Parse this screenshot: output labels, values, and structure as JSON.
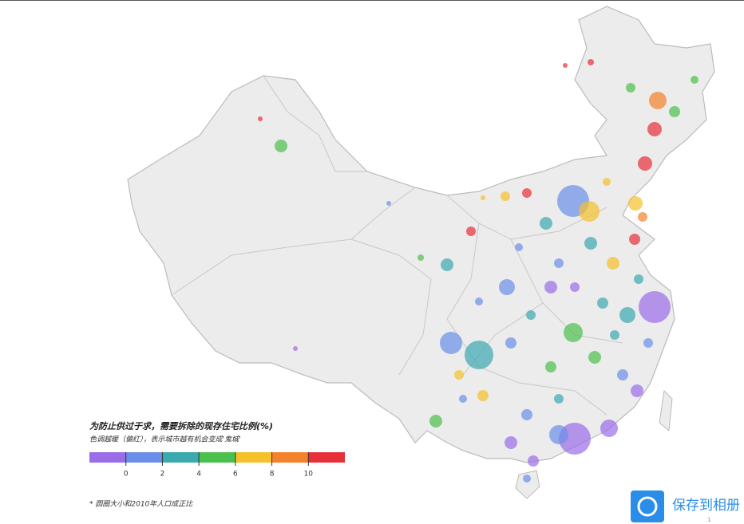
{
  "legend": {
    "title": "为防止供过于求，需要拆除的现存住宅比例(%)",
    "subtitle": "色调越暖（偏红），表示城市越有机会变成'鬼城'",
    "colors": [
      "#9b6ce8",
      "#6b8ee8",
      "#3aa9b0",
      "#4cc04c",
      "#f5c02a",
      "#f5822a",
      "#e8303a"
    ],
    "ticks": [
      0,
      2,
      4,
      6,
      8,
      10
    ]
  },
  "footnote": "* 圆圈大小和2010年人口成正比",
  "watermark": {
    "label": "保存到相册",
    "page": "1"
  }
}
